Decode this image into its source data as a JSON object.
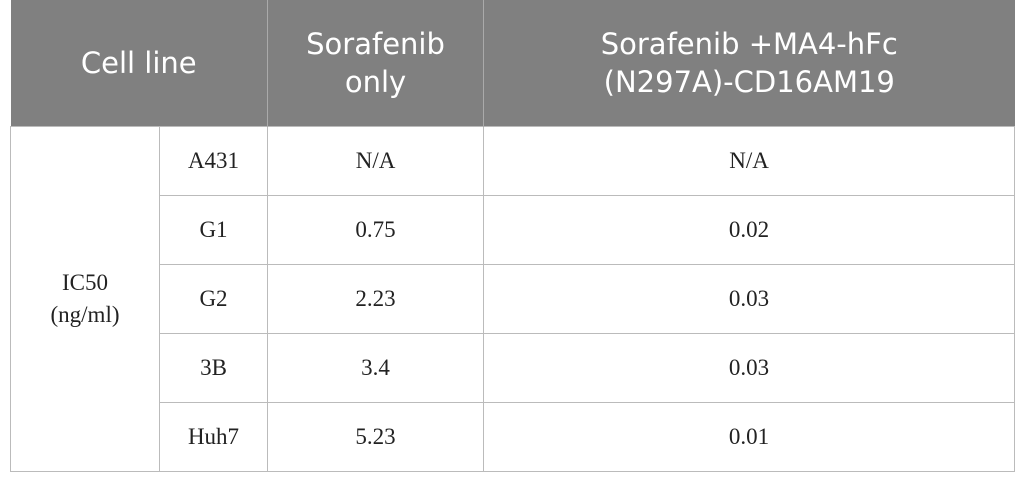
{
  "table": {
    "header": [
      [
        "Cell line"
      ],
      [
        "Sorafenib",
        "only"
      ],
      [
        "Sorafenib +MA4-hFc",
        "(N297A)-CD16AM19"
      ]
    ],
    "group_label": [
      "IC50",
      "(ng/ml)"
    ],
    "rows": [
      [
        "A431",
        "N/A",
        "N/A"
      ],
      [
        "G1",
        "0.75",
        "0.02"
      ],
      [
        "G2",
        "2.23",
        "0.03"
      ],
      [
        "3B",
        "3.4",
        "0.03"
      ],
      [
        "Huh7",
        "5.23",
        "0.01"
      ]
    ]
  }
}
